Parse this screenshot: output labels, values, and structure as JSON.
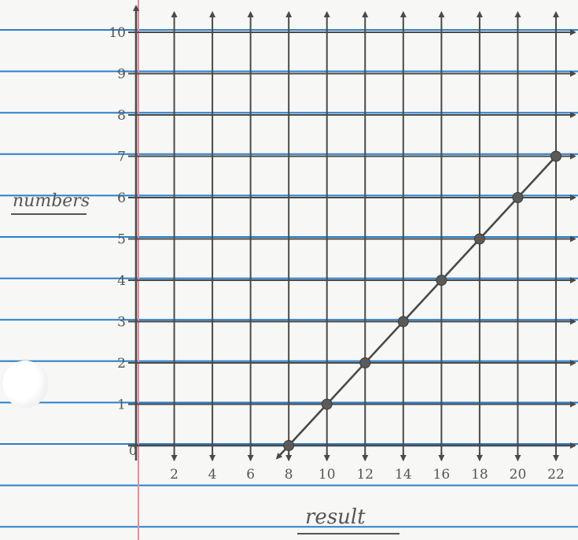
{
  "chart_data": {
    "type": "line",
    "xlabel": "result",
    "ylabel": "numbers",
    "xlim": [
      0,
      22
    ],
    "ylim": [
      0,
      10
    ],
    "x_ticks": [
      "0",
      "2",
      "4",
      "6",
      "8",
      "10",
      "12",
      "14",
      "16",
      "18",
      "20",
      "22"
    ],
    "y_ticks": [
      "1",
      "2",
      "3",
      "4",
      "5",
      "6",
      "7",
      "8",
      "9",
      "10"
    ],
    "grid": true,
    "series": [
      {
        "points": [
          {
            "x": 8,
            "y": 0
          },
          {
            "x": 10,
            "y": 1
          },
          {
            "x": 12,
            "y": 2
          },
          {
            "x": 14,
            "y": 3
          },
          {
            "x": 16,
            "y": 4
          },
          {
            "x": 18,
            "y": 5
          },
          {
            "x": 20,
            "y": 6
          },
          {
            "x": 22,
            "y": 7
          }
        ]
      }
    ]
  },
  "colors": {
    "paper": "#f7f7f5",
    "rule_line": "#2a7fc9",
    "margin_line": "#e88a9a",
    "pencil": "#4a4a4a"
  }
}
